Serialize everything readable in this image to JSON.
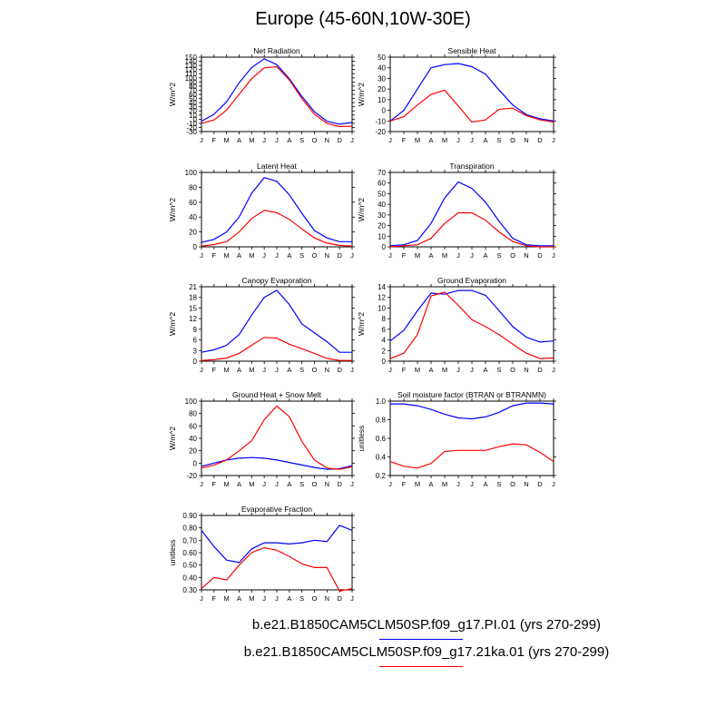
{
  "figure": {
    "title": "Europe (45-60N,10W-30E)",
    "legend": [
      {
        "label": "b.e21.B1850CAM5CLM50SP.f09_g17.PI.01 (yrs 270-299)",
        "color": "#0000ff"
      },
      {
        "label": "b.e21.B1850CAM5CLM50SP.f09_g17.21ka.01 (yrs 270-299)",
        "color": "#ff0000"
      }
    ]
  },
  "chart_data": [
    {
      "type": "line",
      "title": "Net Radiation",
      "ylabel": "W/m^2",
      "ylim": [
        -30,
        150
      ],
      "yticks": [
        -30,
        -20,
        -10,
        0,
        10,
        20,
        30,
        40,
        50,
        60,
        70,
        80,
        90,
        100,
        110,
        120,
        130,
        140,
        150
      ],
      "categories": [
        "J",
        "F",
        "M",
        "A",
        "M",
        "J",
        "J",
        "A",
        "S",
        "O",
        "N",
        "D",
        "J"
      ],
      "series": [
        {
          "name": "PI",
          "color": "#0000ff",
          "values": [
            -5,
            12,
            42,
            88,
            125,
            146,
            132,
            98,
            55,
            18,
            -5,
            -12,
            -8
          ]
        },
        {
          "name": "21ka",
          "color": "#ff0000",
          "values": [
            -10,
            -2,
            22,
            60,
            98,
            124,
            127,
            95,
            50,
            12,
            -10,
            -18,
            -17
          ]
        }
      ]
    },
    {
      "type": "line",
      "title": "Sensible Heat",
      "ylabel": "W/m^2",
      "ylim": [
        -20,
        50
      ],
      "yticks": [
        -20,
        -10,
        0,
        10,
        20,
        30,
        40,
        50
      ],
      "categories": [
        "J",
        "F",
        "M",
        "A",
        "M",
        "J",
        "J",
        "A",
        "S",
        "O",
        "N",
        "D",
        "J"
      ],
      "series": [
        {
          "name": "PI",
          "color": "#0000ff",
          "values": [
            -10,
            0,
            20,
            40,
            43,
            44,
            41,
            34,
            19,
            5,
            -4,
            -8,
            -10
          ]
        },
        {
          "name": "21ka",
          "color": "#ff0000",
          "values": [
            -10,
            -6,
            5,
            15,
            19,
            4,
            -11,
            -9,
            1,
            2,
            -5,
            -9,
            -11
          ]
        }
      ]
    },
    {
      "type": "line",
      "title": "Latent Heat",
      "ylabel": "W/m^2",
      "ylim": [
        0,
        100
      ],
      "yticks": [
        0,
        20,
        40,
        60,
        80,
        100
      ],
      "categories": [
        "J",
        "F",
        "M",
        "A",
        "M",
        "J",
        "J",
        "A",
        "S",
        "O",
        "N",
        "D",
        "J"
      ],
      "series": [
        {
          "name": "PI",
          "color": "#0000ff",
          "values": [
            6,
            10,
            20,
            40,
            72,
            93,
            88,
            70,
            45,
            22,
            12,
            7,
            7
          ]
        },
        {
          "name": "21ka",
          "color": "#ff0000",
          "values": [
            1,
            3,
            7,
            20,
            38,
            49,
            46,
            37,
            24,
            12,
            5,
            2,
            1
          ]
        }
      ]
    },
    {
      "type": "line",
      "title": "Transpiration",
      "ylabel": "W/m^2",
      "ylim": [
        0,
        70
      ],
      "yticks": [
        0,
        10,
        20,
        30,
        40,
        50,
        60,
        70
      ],
      "categories": [
        "J",
        "F",
        "M",
        "A",
        "M",
        "J",
        "J",
        "A",
        "S",
        "O",
        "N",
        "D",
        "J"
      ],
      "series": [
        {
          "name": "PI",
          "color": "#0000ff",
          "values": [
            1,
            2,
            6,
            22,
            46,
            61,
            55,
            42,
            24,
            8,
            2,
            1,
            1
          ]
        },
        {
          "name": "21ka",
          "color": "#ff0000",
          "values": [
            0,
            1,
            2,
            8,
            22,
            32,
            32,
            25,
            14,
            5,
            1,
            0,
            0
          ]
        }
      ]
    },
    {
      "type": "line",
      "title": "Canopy Evaporation",
      "ylabel": "W/m^2",
      "ylim": [
        0,
        21
      ],
      "yticks": [
        0,
        3,
        6,
        9,
        12,
        15,
        18,
        21
      ],
      "categories": [
        "J",
        "F",
        "M",
        "A",
        "M",
        "J",
        "J",
        "A",
        "S",
        "O",
        "N",
        "D",
        "J"
      ],
      "series": [
        {
          "name": "PI",
          "color": "#0000ff",
          "values": [
            2.5,
            3.2,
            4.5,
            7.5,
            13,
            18,
            20,
            16,
            10.5,
            8,
            5.5,
            2.5,
            2.5
          ]
        },
        {
          "name": "21ka",
          "color": "#ff0000",
          "values": [
            0.2,
            0.4,
            0.9,
            2.2,
            4.5,
            6.7,
            6.5,
            4.8,
            3.5,
            2.2,
            0.8,
            0.2,
            0.2
          ]
        }
      ]
    },
    {
      "type": "line",
      "title": "Ground Evaporation",
      "ylabel": "W/m^2",
      "ylim": [
        0,
        14
      ],
      "yticks": [
        0,
        2,
        4,
        6,
        8,
        10,
        12,
        14
      ],
      "categories": [
        "J",
        "F",
        "M",
        "A",
        "M",
        "J",
        "J",
        "A",
        "S",
        "O",
        "N",
        "D",
        "J"
      ],
      "series": [
        {
          "name": "PI",
          "color": "#0000ff",
          "values": [
            3.8,
            5.8,
            9.5,
            12.8,
            12.6,
            13.3,
            13.3,
            12.4,
            9.5,
            6.5,
            4.5,
            3.6,
            3.8
          ]
        },
        {
          "name": "21ka",
          "color": "#ff0000",
          "values": [
            0.5,
            1.5,
            5,
            12.3,
            13,
            10.5,
            7.8,
            6.5,
            5,
            3.2,
            1.5,
            0.5,
            0.6
          ]
        }
      ]
    },
    {
      "type": "line",
      "title": "Ground Heat + Snow Melt",
      "ylabel": "W/m^2",
      "ylim": [
        -20,
        100
      ],
      "yticks": [
        -20,
        0,
        20,
        40,
        60,
        80,
        100
      ],
      "categories": [
        "J",
        "F",
        "M",
        "A",
        "M",
        "J",
        "J",
        "A",
        "S",
        "O",
        "N",
        "D",
        "J"
      ],
      "series": [
        {
          "name": "PI",
          "color": "#0000ff",
          "values": [
            -5,
            0,
            5,
            8,
            9,
            8,
            5,
            1,
            -3,
            -7,
            -10,
            -9,
            -4
          ]
        },
        {
          "name": "21ka",
          "color": "#ff0000",
          "values": [
            -8,
            -3,
            5,
            20,
            36,
            70,
            92,
            75,
            35,
            5,
            -8,
            -10,
            -6
          ]
        }
      ]
    },
    {
      "type": "line",
      "title": "Soil moisture factor (BTRAN or BTRANMN)",
      "ylabel": "unitless",
      "ylim": [
        0.2,
        1.0
      ],
      "yticks": [
        0.2,
        0.4,
        0.6,
        0.8,
        1.0
      ],
      "categories": [
        "J",
        "F",
        "M",
        "A",
        "M",
        "J",
        "J",
        "A",
        "S",
        "O",
        "N",
        "D",
        "J"
      ],
      "series": [
        {
          "name": "PI",
          "color": "#0000ff",
          "values": [
            0.97,
            0.97,
            0.95,
            0.91,
            0.86,
            0.82,
            0.81,
            0.83,
            0.88,
            0.95,
            0.98,
            0.98,
            0.97
          ]
        },
        {
          "name": "21ka",
          "color": "#ff0000",
          "values": [
            0.35,
            0.3,
            0.28,
            0.33,
            0.46,
            0.47,
            0.47,
            0.47,
            0.51,
            0.54,
            0.53,
            0.45,
            0.35
          ]
        }
      ]
    },
    {
      "type": "line",
      "title": "Evaporative Fraction",
      "ylabel": "unitless",
      "ylim": [
        0.3,
        0.9
      ],
      "yticks": [
        0.3,
        0.4,
        0.5,
        0.6,
        0.7,
        0.8,
        0.9
      ],
      "categories": [
        "J",
        "F",
        "M",
        "A",
        "M",
        "J",
        "J",
        "A",
        "S",
        "O",
        "N",
        "D",
        "J"
      ],
      "series": [
        {
          "name": "PI",
          "color": "#0000ff",
          "values": [
            0.78,
            0.65,
            0.54,
            0.52,
            0.63,
            0.68,
            0.68,
            0.67,
            0.68,
            0.7,
            0.69,
            0.82,
            0.78
          ]
        },
        {
          "name": "21ka",
          "color": "#ff0000",
          "values": [
            0.31,
            0.4,
            0.38,
            0.5,
            0.6,
            0.64,
            0.62,
            0.57,
            0.51,
            0.48,
            0.48,
            0.29,
            0.31
          ]
        }
      ]
    }
  ]
}
